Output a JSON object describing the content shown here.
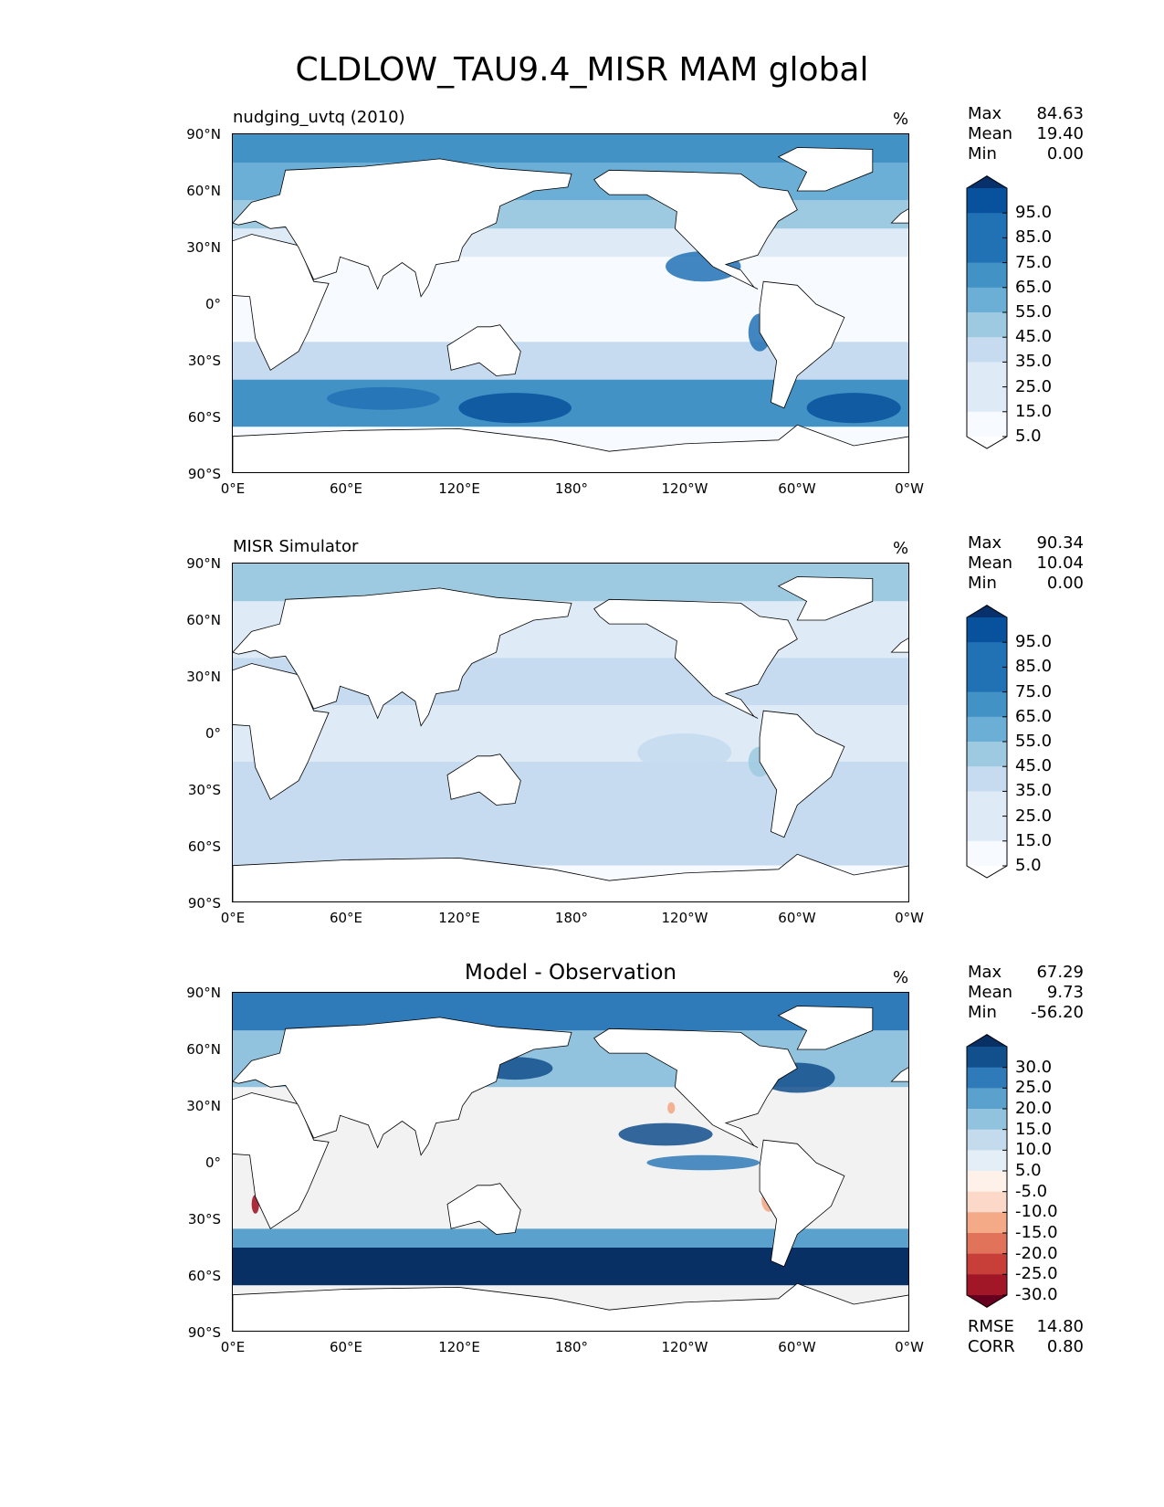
{
  "title": "CLDLOW_TAU9.4_MISR MAM global",
  "lat_ticks": [
    "90°N",
    "60°N",
    "30°N",
    "0°",
    "30°S",
    "60°S",
    "90°S"
  ],
  "lon_ticks": [
    "0°E",
    "60°E",
    "120°E",
    "180°",
    "120°W",
    "60°W",
    "0°W"
  ],
  "panels": [
    {
      "title": "nudging_uvtq (2010)",
      "units": "%",
      "stats": [
        {
          "label": "Max",
          "value": "84.63"
        },
        {
          "label": "Mean",
          "value": "19.40"
        },
        {
          "label": "Min",
          "value": "0.00"
        }
      ],
      "colorbar_labels": [
        "95.0",
        "85.0",
        "75.0",
        "65.0",
        "55.0",
        "45.0",
        "35.0",
        "25.0",
        "15.0",
        "5.0"
      ]
    },
    {
      "title": "MISR Simulator",
      "units": "%",
      "stats": [
        {
          "label": "Max",
          "value": "90.34"
        },
        {
          "label": "Mean",
          "value": "10.04"
        },
        {
          "label": "Min",
          "value": "0.00"
        }
      ],
      "colorbar_labels": [
        "95.0",
        "85.0",
        "75.0",
        "65.0",
        "55.0",
        "45.0",
        "35.0",
        "25.0",
        "15.0",
        "5.0"
      ]
    },
    {
      "title": "Model - Observation",
      "units": "%",
      "stats": [
        {
          "label": "Max",
          "value": "67.29"
        },
        {
          "label": "Mean",
          "value": "9.73"
        },
        {
          "label": "Min",
          "value": "-56.20"
        }
      ],
      "colorbar_labels": [
        "30.0",
        "25.0",
        "20.0",
        "15.0",
        "10.0",
        "5.0",
        "-5.0",
        "-10.0",
        "-15.0",
        "-20.0",
        "-25.0",
        "-30.0"
      ],
      "bottom_stats": [
        {
          "label": "RMSE",
          "value": "14.80"
        },
        {
          "label": "CORR",
          "value": "0.80"
        }
      ]
    }
  ],
  "colors": {
    "blues": [
      "#f7fbff",
      "#deebf7",
      "#c6dbef",
      "#9ecae1",
      "#6baed6",
      "#4292c6",
      "#2171b5",
      "#08519c",
      "#08306b"
    ],
    "diff_blues": [
      "#f2f2f2",
      "#e3eef6",
      "#c3dbec",
      "#91c3de",
      "#5aa1cd",
      "#2f7ab8",
      "#124f8d",
      "#093065"
    ],
    "diff_reds": [
      "#fbd8c8",
      "#f4a987",
      "#e2735b",
      "#c83f3a",
      "#a11727",
      "#67001f"
    ],
    "land": "#ffffff"
  }
}
